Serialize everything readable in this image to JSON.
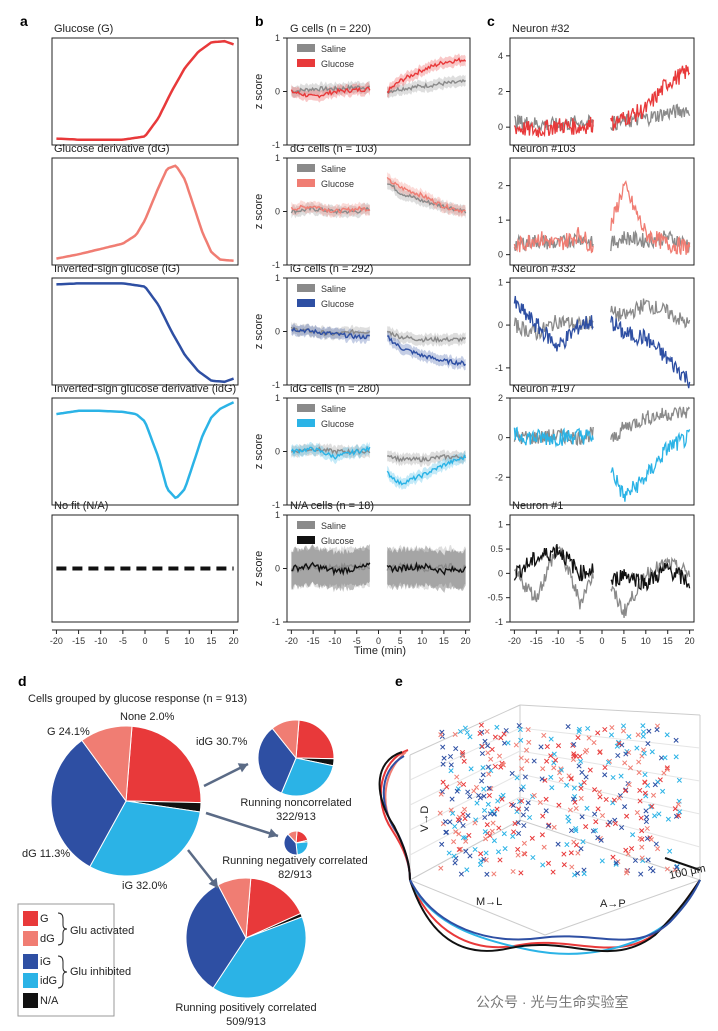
{
  "panel_labels": [
    "a",
    "b",
    "c",
    "d",
    "e"
  ],
  "colors": {
    "G": "#e8393a",
    "dG": "#f07d73",
    "iG": "#2e4fa3",
    "idG": "#2bb3e6",
    "NA": "#111111",
    "saline": "#8a8a8a",
    "arrow": "#5b6b86"
  },
  "shared_xlabel": "Time (min)",
  "ylabel_z": "z score",
  "legend_saline": "Saline",
  "legend_glucose": "Glucose",
  "panel_d": {
    "title": "Cells grouped by glucose response (n = 913)",
    "main_pie_labels": [
      "G 24.1%",
      "None 2.0%",
      "idG 30.7%",
      "dG 11.3%",
      "iG 32.0%"
    ],
    "sub_pies": [
      {
        "label1": "Running noncorrelated",
        "label2": "322/913"
      },
      {
        "label1": "Running negatively correlated",
        "label2": "82/913"
      },
      {
        "label1": "Running positively correlated",
        "label2": "509/913"
      }
    ],
    "legend": {
      "items": [
        "G",
        "dG",
        "iG",
        "idG",
        "N/A"
      ],
      "group1": "Glu activated",
      "group2": "Glu inhibited"
    }
  },
  "panel_e": {
    "axis1": "M→L",
    "axis2": "A→P",
    "axis3": "V→D",
    "scale": "100 μm"
  },
  "watermark": "公众号 · 光与生命实验室",
  "chart_data": [
    {
      "panel": "a",
      "type": "line",
      "title": "Glucose (G)",
      "color": "#e8393a",
      "x": [
        -20,
        -15,
        -10,
        -5,
        0,
        3,
        6,
        9,
        12,
        15,
        18,
        20
      ],
      "values": [
        0.06,
        0.05,
        0.05,
        0.05,
        0.08,
        0.25,
        0.5,
        0.72,
        0.87,
        0.96,
        0.97,
        0.94
      ],
      "xlim": [
        -20,
        20
      ]
    },
    {
      "panel": "a",
      "type": "line",
      "title": "Glucose derivative (dG)",
      "color": "#f07d73",
      "x": [
        -20,
        -15,
        -10,
        -5,
        -2,
        0,
        3,
        5,
        7,
        9,
        11,
        13,
        15,
        17,
        20
      ],
      "values": [
        0.06,
        0.1,
        0.15,
        0.2,
        0.28,
        0.42,
        0.72,
        0.9,
        0.93,
        0.8,
        0.55,
        0.3,
        0.12,
        0.05,
        0.04
      ],
      "xlim": [
        -20,
        20
      ]
    },
    {
      "panel": "a",
      "type": "line",
      "title": "Inverted-sign glucose (iG)",
      "color": "#2e4fa3",
      "x": [
        -20,
        -15,
        -10,
        -5,
        0,
        3,
        6,
        9,
        12,
        15,
        18,
        20
      ],
      "values": [
        0.94,
        0.95,
        0.95,
        0.95,
        0.92,
        0.75,
        0.5,
        0.28,
        0.13,
        0.04,
        0.03,
        0.06
      ],
      "xlim": [
        -20,
        20
      ]
    },
    {
      "panel": "a",
      "type": "line",
      "title": "Inverted-sign glucose derivative (idG)",
      "color": "#2bb3e6",
      "x": [
        -20,
        -15,
        -10,
        -5,
        -2,
        0,
        3,
        5,
        7,
        9,
        11,
        13,
        15,
        17,
        20
      ],
      "values": [
        0.85,
        0.88,
        0.88,
        0.87,
        0.85,
        0.78,
        0.45,
        0.15,
        0.06,
        0.15,
        0.4,
        0.65,
        0.82,
        0.9,
        0.96
      ],
      "xlim": [
        -20,
        20
      ]
    },
    {
      "panel": "a",
      "type": "line",
      "title": "No fit (N/A)",
      "color": "#111111",
      "dashed": true,
      "x": [
        -20,
        20
      ],
      "values": [
        0.5,
        0.5
      ],
      "xlim": [
        -20,
        20
      ]
    },
    {
      "panel": "b",
      "type": "line",
      "title": "G cells (n = 220)",
      "ylabel": "z score",
      "ylim": [
        -1,
        1
      ],
      "yticks": [
        -1,
        0,
        1
      ],
      "x_saline_pre": [
        -20,
        -15,
        -10,
        -5,
        -2
      ],
      "saline_pre": [
        0.0,
        0.05,
        0.05,
        0.08,
        0.08
      ],
      "x_glucose_pre": [
        -20,
        -15,
        -10,
        -5,
        -2
      ],
      "glucose_pre": [
        0.0,
        -0.1,
        0.0,
        0.03,
        0.05
      ],
      "x_saline_post": [
        2,
        5,
        10,
        15,
        20
      ],
      "saline_post": [
        0.0,
        0.05,
        0.1,
        0.15,
        0.18
      ],
      "x_glucose_post": [
        2,
        5,
        10,
        15,
        20
      ],
      "glucose_post": [
        0.0,
        0.2,
        0.4,
        0.55,
        0.6
      ],
      "glucose_color": "#e8393a"
    },
    {
      "panel": "b",
      "type": "line",
      "title": "dG cells (n = 103)",
      "ylabel": "z score",
      "ylim": [
        -1,
        1
      ],
      "yticks": [
        -1,
        0,
        1
      ],
      "x_saline_pre": [
        -20,
        -15,
        -10,
        -5,
        -2
      ],
      "saline_pre": [
        0.0,
        0.05,
        0.0,
        0.0,
        0.05
      ],
      "x_glucose_pre": [
        -20,
        -15,
        -10,
        -5,
        -2
      ],
      "glucose_pre": [
        0.05,
        0.1,
        0.0,
        0.05,
        0.05
      ],
      "x_saline_post": [
        2,
        5,
        10,
        15,
        20
      ],
      "saline_post": [
        0.55,
        0.35,
        0.2,
        0.1,
        0.0
      ],
      "x_glucose_post": [
        2,
        5,
        10,
        15,
        20
      ],
      "glucose_post": [
        0.6,
        0.45,
        0.3,
        0.1,
        0.0
      ],
      "glucose_color": "#f07d73"
    },
    {
      "panel": "b",
      "type": "line",
      "title": "iG cells (n = 292)",
      "ylabel": "z score",
      "ylim": [
        -1,
        1
      ],
      "yticks": [
        -1,
        0,
        1
      ],
      "x_saline_pre": [
        -20,
        -15,
        -10,
        -5,
        -2
      ],
      "saline_pre": [
        0.05,
        0.0,
        -0.05,
        0.0,
        0.0
      ],
      "x_glucose_pre": [
        -20,
        -15,
        -10,
        -5,
        -2
      ],
      "glucose_pre": [
        0.05,
        0.0,
        -0.05,
        -0.1,
        -0.1
      ],
      "x_saline_post": [
        2,
        5,
        10,
        15,
        20
      ],
      "saline_post": [
        0.0,
        -0.1,
        -0.15,
        -0.15,
        -0.15
      ],
      "x_glucose_post": [
        2,
        5,
        10,
        15,
        20
      ],
      "glucose_post": [
        -0.1,
        -0.3,
        -0.45,
        -0.55,
        -0.6
      ],
      "glucose_color": "#2e4fa3"
    },
    {
      "panel": "b",
      "type": "line",
      "title": "idG cells (n = 280)",
      "ylabel": "z score",
      "ylim": [
        -1,
        1
      ],
      "yticks": [
        -1,
        0,
        1
      ],
      "x_saline_pre": [
        -20,
        -15,
        -10,
        -5,
        -2
      ],
      "saline_pre": [
        0.0,
        0.05,
        0.0,
        0.0,
        0.0
      ],
      "x_glucose_pre": [
        -20,
        -15,
        -10,
        -5,
        -2
      ],
      "glucose_pre": [
        0.0,
        0.05,
        -0.1,
        0.0,
        0.05
      ],
      "x_saline_post": [
        2,
        5,
        10,
        15,
        20
      ],
      "saline_post": [
        -0.05,
        -0.15,
        -0.15,
        -0.1,
        -0.1
      ],
      "x_glucose_post": [
        2,
        5,
        10,
        15,
        20
      ],
      "glucose_post": [
        -0.4,
        -0.6,
        -0.45,
        -0.25,
        -0.1
      ],
      "glucose_color": "#2bb3e6"
    },
    {
      "panel": "b",
      "type": "line",
      "title": "N/A cells (n = 18)",
      "ylabel": "z score",
      "ylim": [
        -1,
        1
      ],
      "yticks": [
        -1,
        0,
        1
      ],
      "x_saline_pre": [
        -20,
        -15,
        -10,
        -5,
        -2
      ],
      "saline_pre": [
        0.0,
        0.05,
        0.0,
        0.05,
        0.0
      ],
      "x_glucose_pre": [
        -20,
        -15,
        -10,
        -5,
        -2
      ],
      "glucose_pre": [
        0.0,
        0.05,
        -0.05,
        0.0,
        0.05
      ],
      "x_saline_post": [
        2,
        5,
        10,
        15,
        20
      ],
      "saline_post": [
        0.0,
        0.05,
        0.0,
        0.05,
        0.0
      ],
      "x_glucose_post": [
        2,
        5,
        10,
        15,
        20
      ],
      "glucose_post": [
        0.0,
        0.0,
        0.05,
        -0.05,
        0.0
      ],
      "glucose_color": "#111111"
    },
    {
      "panel": "c",
      "type": "line",
      "title": "Neuron #32",
      "ylim": [
        -1,
        5
      ],
      "yticks": [
        0,
        2,
        4
      ],
      "x_saline_pre": [
        -20,
        -15,
        -10,
        -5,
        -2
      ],
      "saline_pre": [
        0.3,
        0.2,
        0.1,
        0.3,
        0.2
      ],
      "x_glucose_pre": [
        -20,
        -15,
        -10,
        -5,
        -2
      ],
      "glucose_pre": [
        0.0,
        -0.2,
        0.1,
        0.0,
        0.2
      ],
      "x_saline_post": [
        2,
        5,
        10,
        15,
        20
      ],
      "saline_post": [
        0.2,
        0.3,
        0.5,
        0.8,
        1.0
      ],
      "x_glucose_post": [
        2,
        5,
        10,
        15,
        20
      ],
      "glucose_post": [
        0.2,
        0.5,
        1.0,
        2.5,
        3.2
      ],
      "glucose_color": "#e8393a"
    },
    {
      "panel": "c",
      "type": "line",
      "title": "Neuron #103",
      "ylim": [
        -0.3,
        2.8
      ],
      "yticks": [
        0,
        1,
        2
      ],
      "x_saline_pre": [
        -20,
        -15,
        -10,
        -5,
        -2
      ],
      "saline_pre": [
        0.3,
        0.4,
        0.3,
        0.5,
        0.3
      ],
      "x_glucose_pre": [
        -20,
        -15,
        -10,
        -5,
        -2
      ],
      "glucose_pre": [
        0.2,
        0.5,
        0.3,
        0.6,
        0.2
      ],
      "x_saline_post": [
        2,
        5,
        10,
        15,
        20
      ],
      "saline_post": [
        0.3,
        0.5,
        0.4,
        0.5,
        0.3
      ],
      "x_glucose_post": [
        2,
        5,
        10,
        15,
        20
      ],
      "glucose_post": [
        0.8,
        2.0,
        0.6,
        0.3,
        0.2
      ],
      "glucose_color": "#f07d73"
    },
    {
      "panel": "c",
      "type": "line",
      "title": "Neuron #332",
      "ylim": [
        -1.4,
        1.1
      ],
      "yticks": [
        -1,
        0,
        1
      ],
      "x_saline_pre": [
        -20,
        -15,
        -10,
        -5,
        -2
      ],
      "saline_pre": [
        0.0,
        -0.2,
        0.1,
        0.0,
        0.1
      ],
      "x_glucose_pre": [
        -20,
        -15,
        -10,
        -5,
        -2
      ],
      "glucose_pre": [
        0.5,
        0.0,
        -0.5,
        0.0,
        0.1
      ],
      "x_saline_post": [
        2,
        5,
        10,
        15,
        20
      ],
      "saline_post": [
        0.3,
        0.2,
        0.5,
        0.3,
        0.0
      ],
      "x_glucose_post": [
        2,
        5,
        10,
        15,
        20
      ],
      "glucose_post": [
        0.1,
        -0.2,
        -0.3,
        -0.8,
        -1.3
      ],
      "glucose_color": "#2e4fa3"
    },
    {
      "panel": "c",
      "type": "line",
      "title": "Neuron #197",
      "ylim": [
        -3.4,
        2
      ],
      "yticks": [
        -2,
        0,
        2
      ],
      "x_saline_pre": [
        -20,
        -15,
        -10,
        -5,
        -2
      ],
      "saline_pre": [
        0.0,
        0.0,
        0.1,
        0.0,
        0.2
      ],
      "x_glucose_pre": [
        -20,
        -15,
        -10,
        -5,
        -2
      ],
      "glucose_pre": [
        0.1,
        0.0,
        0.0,
        0.1,
        0.0
      ],
      "x_saline_post": [
        2,
        5,
        10,
        15,
        20
      ],
      "saline_post": [
        -0.2,
        0.5,
        1.0,
        1.2,
        1.3
      ],
      "x_glucose_post": [
        2,
        5,
        10,
        15,
        20
      ],
      "glucose_post": [
        -1.5,
        -3.0,
        -2.0,
        -0.5,
        0.0
      ],
      "glucose_color": "#2bb3e6"
    },
    {
      "panel": "c",
      "type": "line",
      "title": "Neuron #1",
      "ylim": [
        -1,
        1.2
      ],
      "yticks": [
        -1,
        -0.5,
        0,
        0.5,
        1
      ],
      "x_saline_pre": [
        -20,
        -15,
        -10,
        -5,
        -2
      ],
      "saline_pre": [
        0.0,
        -0.5,
        0.6,
        -0.6,
        0.0
      ],
      "x_glucose_pre": [
        -20,
        -15,
        -10,
        -5,
        -2
      ],
      "glucose_pre": [
        0.0,
        0.3,
        0.5,
        0.0,
        0.1
      ],
      "x_saline_post": [
        2,
        5,
        10,
        15,
        20
      ],
      "saline_post": [
        -0.3,
        -0.8,
        0.0,
        0.2,
        0.0
      ],
      "x_glucose_post": [
        2,
        5,
        10,
        15,
        20
      ],
      "glucose_post": [
        -0.2,
        0.0,
        -0.2,
        0.1,
        -0.2
      ],
      "glucose_color": "#111111"
    },
    {
      "panel": "d",
      "type": "pie",
      "title": "Cells grouped by glucose response (n = 913)",
      "categories": [
        "G",
        "None",
        "idG",
        "iG",
        "dG"
      ],
      "values": [
        24.1,
        2.0,
        30.7,
        32.0,
        11.3
      ]
    },
    {
      "panel": "d",
      "type": "pie",
      "title": "Running noncorrelated",
      "categories": [
        "G",
        "None",
        "idG",
        "iG",
        "dG"
      ],
      "values": [
        24,
        3,
        28,
        33,
        12
      ]
    },
    {
      "panel": "d",
      "type": "pie",
      "title": "Running negatively correlated",
      "categories": [
        "G",
        "None",
        "idG",
        "iG",
        "dG"
      ],
      "values": [
        20,
        2,
        25,
        40,
        13
      ]
    },
    {
      "panel": "d",
      "type": "pie",
      "title": "Running positively correlated",
      "categories": [
        "G",
        "None",
        "idG",
        "iG",
        "dG"
      ],
      "values": [
        17,
        1,
        40,
        33,
        9
      ]
    },
    {
      "panel": "e",
      "type": "scatter",
      "title": "",
      "n_points": 913,
      "axes": [
        "M→L",
        "A→P",
        "V→D"
      ]
    }
  ]
}
